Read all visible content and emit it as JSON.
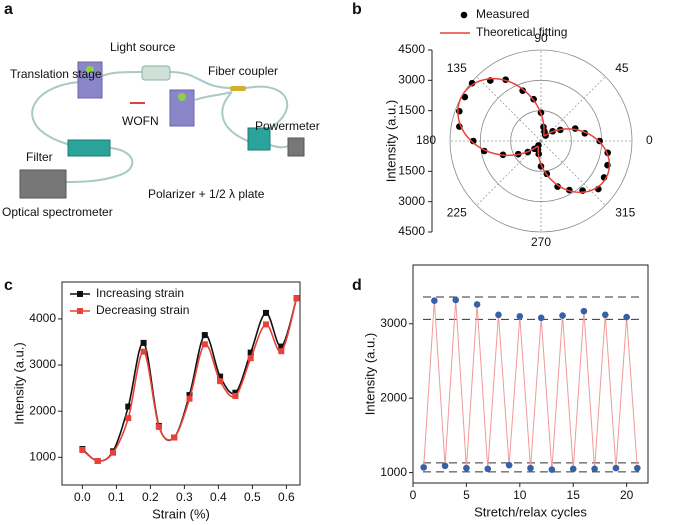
{
  "panel_labels": [
    "a",
    "b",
    "c",
    "d"
  ],
  "diagram": {
    "labels": [
      "Light source",
      "Translation stage",
      "Fiber coupler",
      "WOFN",
      "Powermeter",
      "Filter",
      "Polarizer + 1/2 λ plate",
      "Optical spectrometer"
    ]
  },
  "chart_data": [
    {
      "type": "polar",
      "ylabel": "Intensity (a.u.)",
      "theta": [
        0,
        10,
        20,
        30,
        40,
        50,
        60,
        70,
        80,
        90,
        100,
        110,
        120,
        130,
        140,
        150,
        160,
        170,
        180,
        190,
        200,
        210,
        220,
        230,
        240,
        250,
        260,
        270,
        280,
        290,
        300,
        310,
        320,
        330,
        340,
        350
      ],
      "thetaticks": [
        0,
        45,
        90,
        135,
        180,
        225,
        270,
        315
      ],
      "rlim": [
        0,
        4500
      ],
      "rticks": [
        1500,
        3000,
        4500
      ],
      "legend": "upper right",
      "series": [
        {
          "name": "Measured",
          "color": "#000000",
          "marker": "circle",
          "values": [
            2900,
            2200,
            1800,
            1100,
            750,
            350,
            400,
            500,
            700,
            1400,
            2100,
            2650,
            3500,
            3900,
            4450,
            4350,
            4300,
            4100,
            3350,
            2850,
            2000,
            1300,
            850,
            500,
            250,
            450,
            650,
            1250,
            1650,
            2400,
            2800,
            3200,
            3700,
            3600,
            3500,
            3350
          ]
        },
        {
          "name": "Theoretical fitting",
          "color": "#e8413a",
          "values": [
            2850,
            2295,
            1705,
            1150,
            698,
            402,
            300,
            426,
            791,
            1350,
            2035,
            2765,
            3450,
            4009,
            4374,
            4500,
            4374,
            4009,
            3450,
            2765,
            2035,
            1350,
            791,
            426,
            300,
            402,
            698,
            1150,
            1705,
            2295,
            2850,
            3302,
            3598,
            3700,
            3598,
            3302
          ]
        }
      ]
    },
    {
      "type": "line",
      "xlabel": "Strain (%)",
      "ylabel": "Intensity (a.u.)",
      "x": [
        0,
        0.045,
        0.09,
        0.135,
        0.18,
        0.225,
        0.27,
        0.315,
        0.36,
        0.405,
        0.45,
        0.495,
        0.54,
        0.585,
        0.63
      ],
      "xlim": [
        -0.06,
        0.64
      ],
      "xticks": [
        {
          "value": 0,
          "label": "0.0"
        },
        0.1,
        0.2,
        0.3,
        0.4,
        0.5,
        0.6
      ],
      "ylim": [
        400,
        4800
      ],
      "yticks": [
        1000,
        2000,
        3000,
        4000
      ],
      "legend": "upper left",
      "series": [
        {
          "name": "Increasing strain",
          "color": "#111111",
          "marker": "square",
          "values": [
            1180,
            920,
            1130,
            2100,
            3480,
            1680,
            1430,
            2350,
            3650,
            2750,
            2400,
            3270,
            4130,
            3400,
            4450
          ]
        },
        {
          "name": "Decreasing strain",
          "color": "#e8413a",
          "marker": "square",
          "values": [
            1160,
            920,
            1100,
            1850,
            3290,
            1660,
            1430,
            2270,
            3450,
            2650,
            2330,
            3150,
            3880,
            3300,
            4450
          ]
        }
      ]
    },
    {
      "type": "scatter",
      "xlabel": "Stretch/relax cycles",
      "ylabel": "Intensity (a.u.)",
      "x": [
        1,
        2,
        3,
        4,
        5,
        6,
        7,
        8,
        9,
        10,
        11,
        12,
        13,
        14,
        15,
        16,
        17,
        18,
        19,
        20,
        21
      ],
      "xlim": [
        0,
        22
      ],
      "xticks": [
        0,
        5,
        10,
        15,
        20
      ],
      "ylim": [
        860,
        3790
      ],
      "yticks": [
        1000,
        2000,
        3000
      ],
      "reference_lines": [
        3360,
        3060,
        1130,
        1010
      ],
      "series": [
        {
          "color": "#3a5fa8",
          "line_color": "#f19a9a",
          "marker": "circle",
          "values": [
            1070,
            3310,
            1090,
            3320,
            1060,
            3260,
            1050,
            3120,
            1100,
            3100,
            1060,
            3080,
            1040,
            3110,
            1050,
            3170,
            1050,
            3120,
            1060,
            3090,
            1060
          ]
        }
      ]
    }
  ]
}
